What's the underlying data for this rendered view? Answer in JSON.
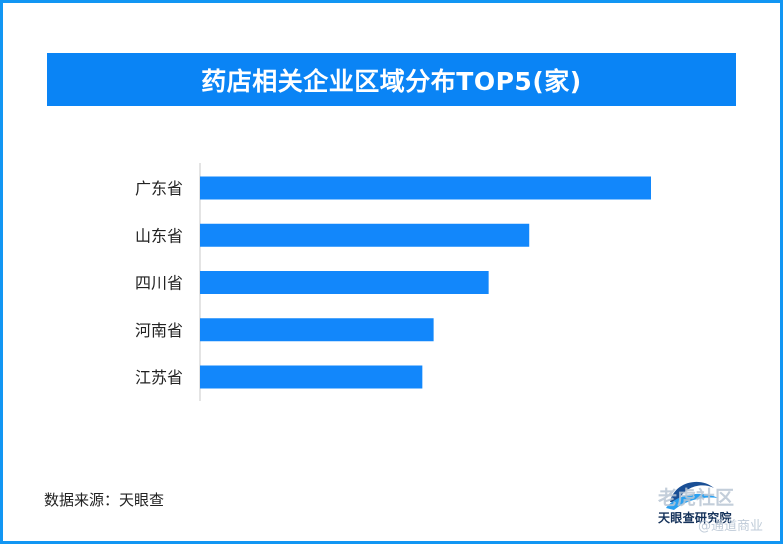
{
  "title": "药店相关企业区域分布TOP5(家)",
  "source": "数据来源：天眼查",
  "logo": {
    "name": "天眼查研究院",
    "icon": "tianyancha-logo-icon"
  },
  "watermark": {
    "line1": "老虎社区",
    "line2": "@通道商业"
  },
  "colors": {
    "banner": "#0a84f5",
    "bar": "#1287fb",
    "frame": "#1296f3"
  },
  "chart_data": {
    "type": "bar",
    "orientation": "horizontal",
    "categories": [
      "广东省",
      "山东省",
      "四川省",
      "河南省",
      "江苏省"
    ],
    "values": [
      1000,
      730,
      640,
      518,
      493
    ],
    "xlim": [
      0,
      1100
    ],
    "grid": false,
    "legend": "none",
    "value_axis_labels": "none"
  }
}
